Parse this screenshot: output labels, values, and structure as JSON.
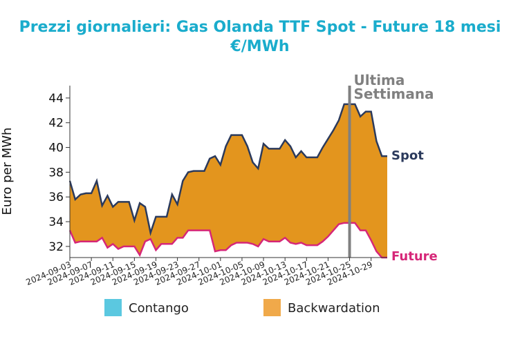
{
  "chart_data": {
    "type": "area",
    "title": "Prezzi giornalieri: Gas Olanda TTF Spot - Future 18 mesi",
    "subtitle": "€/MWh",
    "ylabel": "Euro per MWh",
    "xlabel": "",
    "ylim": [
      31.1,
      45
    ],
    "yticks": [
      32,
      34,
      36,
      38,
      40,
      42,
      44
    ],
    "x_tick_labels": [
      "2024-09-03",
      "2024-09-07",
      "2024-09-11",
      "2024-09-15",
      "2024-09-19",
      "2024-09-23",
      "2024-09-27",
      "2024-10-01",
      "2024-10-05",
      "2024-10-09",
      "2024-10-13",
      "2024-10-17",
      "2024-10-21",
      "2024-10-25",
      "2024-10-29"
    ],
    "x": [
      "2024-09-03",
      "2024-09-04",
      "2024-09-05",
      "2024-09-06",
      "2024-09-07",
      "2024-09-08",
      "2024-09-09",
      "2024-09-10",
      "2024-09-11",
      "2024-09-12",
      "2024-09-13",
      "2024-09-14",
      "2024-09-15",
      "2024-09-16",
      "2024-09-17",
      "2024-09-18",
      "2024-09-19",
      "2024-09-20",
      "2024-09-21",
      "2024-09-22",
      "2024-09-23",
      "2024-09-24",
      "2024-09-25",
      "2024-09-26",
      "2024-09-27",
      "2024-09-28",
      "2024-09-29",
      "2024-09-30",
      "2024-10-01",
      "2024-10-02",
      "2024-10-03",
      "2024-10-04",
      "2024-10-05",
      "2024-10-06",
      "2024-10-07",
      "2024-10-08",
      "2024-10-09",
      "2024-10-10",
      "2024-10-11",
      "2024-10-12",
      "2024-10-13",
      "2024-10-14",
      "2024-10-15",
      "2024-10-16",
      "2024-10-17",
      "2024-10-18",
      "2024-10-19",
      "2024-10-20",
      "2024-10-21",
      "2024-10-22",
      "2024-10-23",
      "2024-10-24",
      "2024-10-25",
      "2024-10-26",
      "2024-10-27",
      "2024-10-28",
      "2024-10-29",
      "2024-10-30",
      "2024-10-31",
      "2024-11-01"
    ],
    "series": [
      {
        "name": "Spot",
        "color": "#2b3a5c",
        "values": [
          37.3,
          35.8,
          36.2,
          36.3,
          36.3,
          37.3,
          35.3,
          36.1,
          35.2,
          35.6,
          35.6,
          35.6,
          34.1,
          35.5,
          35.2,
          33.1,
          34.4,
          34.4,
          34.4,
          36.2,
          35.4,
          37.3,
          38.0,
          38.1,
          38.1,
          38.1,
          39.1,
          39.3,
          38.6,
          40.1,
          41.0,
          41.0,
          41.0,
          40.1,
          38.8,
          38.3,
          40.3,
          39.9,
          39.9,
          39.9,
          40.6,
          40.1,
          39.2,
          39.7,
          39.2,
          39.2,
          39.2,
          40.0,
          40.7,
          41.4,
          42.2,
          43.5,
          43.5,
          43.5,
          42.5,
          42.9,
          42.9,
          40.5,
          39.3,
          39.3
        ],
        "end_label": "Spot"
      },
      {
        "name": "Future",
        "color": "#d62678",
        "values": [
          33.3,
          32.3,
          32.4,
          32.4,
          32.4,
          32.4,
          32.7,
          31.9,
          32.2,
          31.8,
          32.0,
          32.0,
          32.0,
          31.3,
          32.4,
          32.6,
          31.7,
          32.2,
          32.2,
          32.2,
          32.7,
          32.7,
          33.3,
          33.3,
          33.3,
          33.3,
          33.3,
          31.6,
          31.7,
          31.7,
          32.1,
          32.3,
          32.3,
          32.3,
          32.2,
          32.0,
          32.6,
          32.4,
          32.4,
          32.4,
          32.7,
          32.3,
          32.2,
          32.3,
          32.1,
          32.1,
          32.1,
          32.4,
          32.8,
          33.3,
          33.8,
          33.9,
          33.9,
          33.9,
          33.3,
          33.3,
          32.5,
          31.6,
          31.1,
          31.1
        ],
        "end_label": "Future"
      }
    ],
    "fill_colors": {
      "contango": "#5bc8e0",
      "backwardation": "#e3951e"
    },
    "annotation": {
      "x": "2024-10-25",
      "label_line1": "Ultima",
      "label_line2": "Settimana",
      "color": "#808080"
    },
    "legend": {
      "placement": "bottom",
      "items": [
        {
          "label": "Contango",
          "color": "#5bc8e0"
        },
        {
          "label": "Backwardation",
          "color": "#f0a94a"
        }
      ]
    },
    "grid": false
  }
}
